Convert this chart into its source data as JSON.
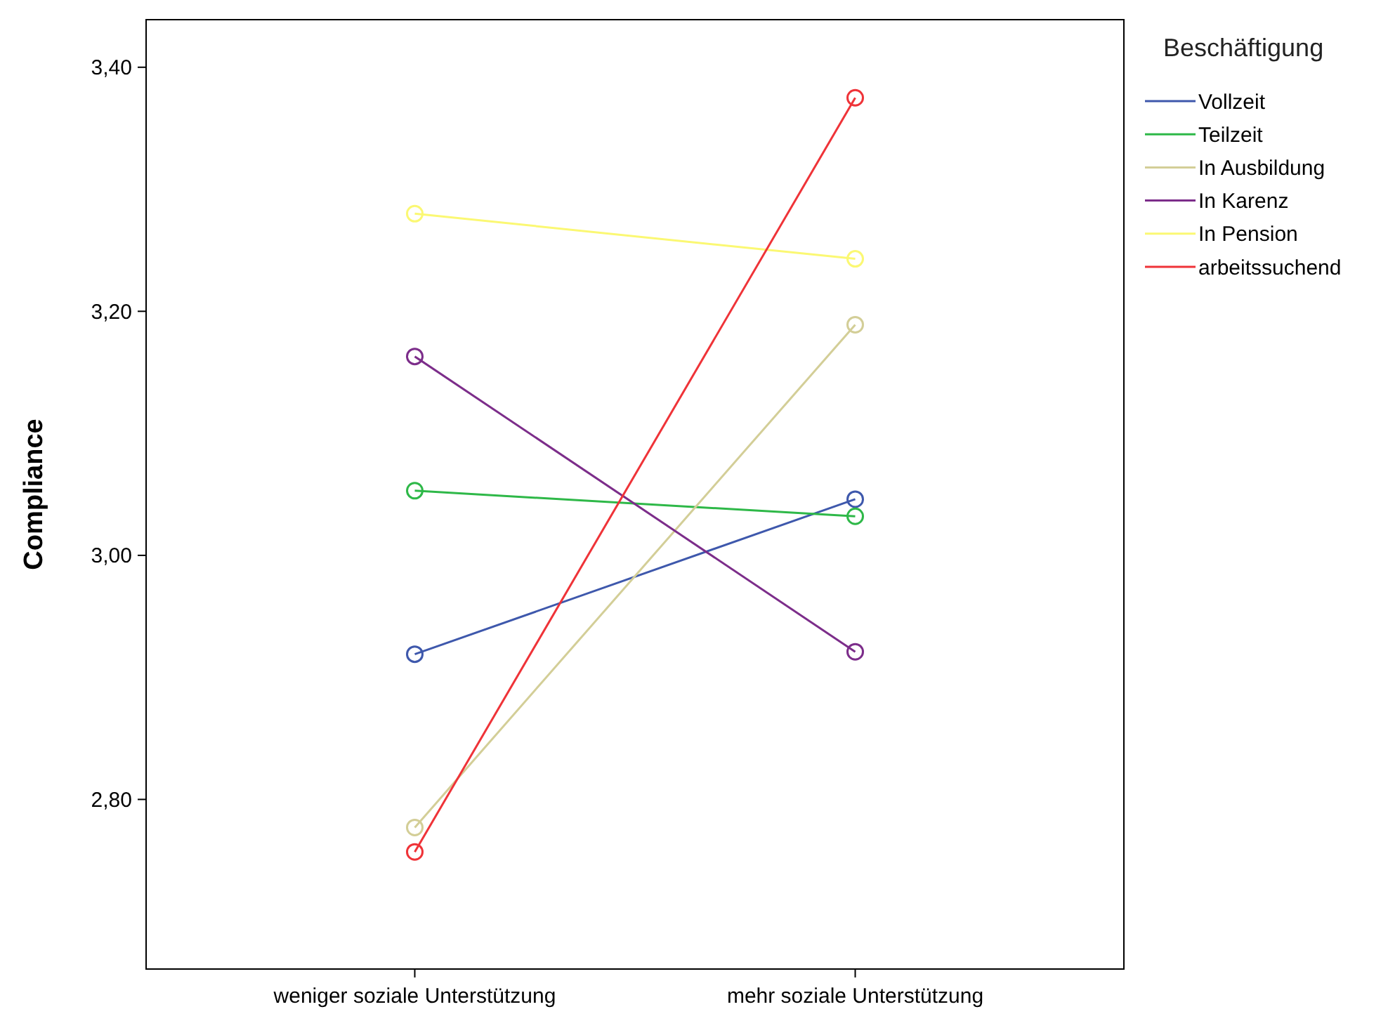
{
  "chart_data": {
    "type": "line",
    "ylabel": "Compliance",
    "legend_title": "Beschäftigung",
    "categories": [
      "weniger soziale Unterstützung",
      "mehr soziale Unterstützung"
    ],
    "series": [
      {
        "name": "Vollzeit",
        "color": "#3e58ac",
        "values": [
          2.919,
          3.046
        ]
      },
      {
        "name": "Teilzeit",
        "color": "#2eb848",
        "values": [
          3.053,
          3.032
        ]
      },
      {
        "name": "In Ausbildung",
        "color": "#d3ce97",
        "values": [
          2.777,
          3.189
        ]
      },
      {
        "name": "In Karenz",
        "color": "#7c2d8a",
        "values": [
          3.163,
          2.921
        ]
      },
      {
        "name": "In Pension",
        "color": "#fbf873",
        "values": [
          3.28,
          3.243
        ]
      },
      {
        "name": "arbeitssuchend",
        "color": "#ef3338",
        "values": [
          2.757,
          3.375
        ]
      }
    ],
    "ylim": [
      2.661,
      3.439
    ],
    "yticks": [
      {
        "value": 2.8,
        "label": "2,80"
      },
      {
        "value": 3.0,
        "label": "3,00"
      },
      {
        "value": 3.2,
        "label": "3,20"
      },
      {
        "value": 3.4,
        "label": "3,40"
      }
    ],
    "grid": false,
    "legend": "right",
    "marker": "circle",
    "line_style": "solid"
  }
}
